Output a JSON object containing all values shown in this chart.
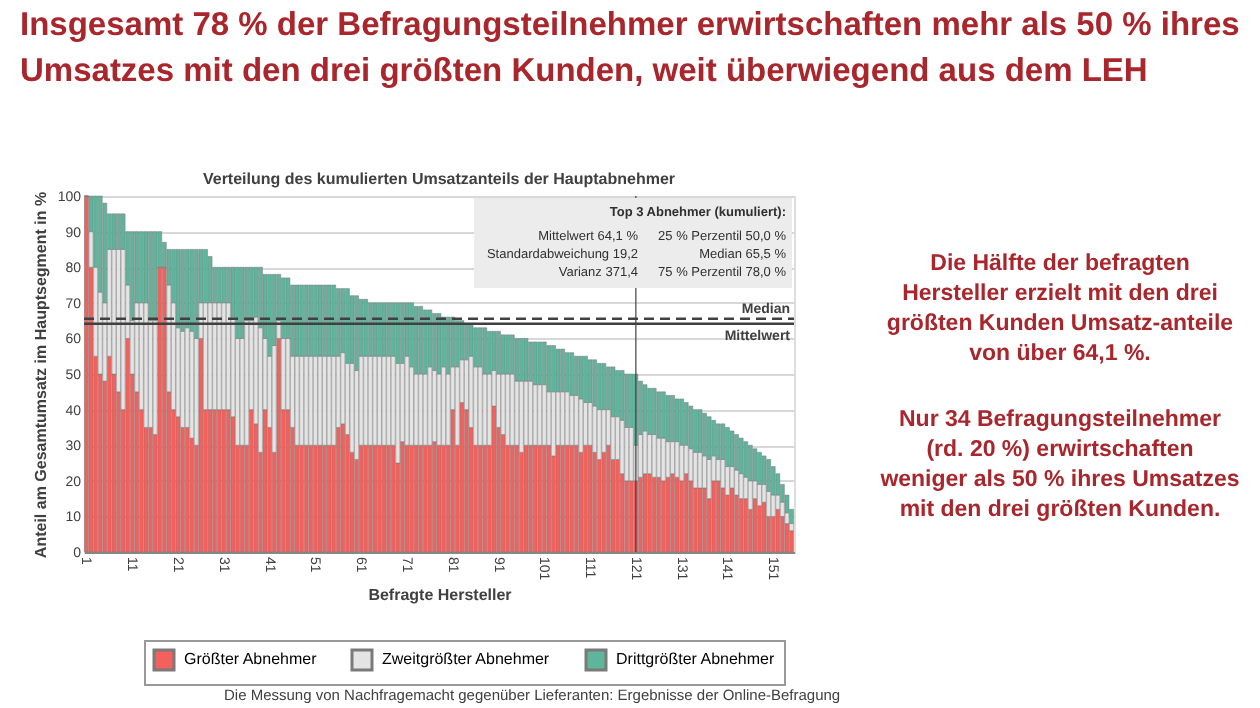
{
  "chart_data": {
    "type": "bar",
    "stacked": true,
    "title": "Insgesamt 78 % der Befragungsteilnehmer erwirtschaften mehr als 50 % ihres Umsatzes mit den drei größten Kunden, weit überwiegend aus dem LEH",
    "subtitle": "Verteilung des kumulierten Umsatzanteils der Hauptabnehmer",
    "xlabel": "Befragte Hersteller",
    "ylabel": "Anteil am Gesamtumsatz im Hauptsegment in %",
    "categories": [
      "1",
      null,
      null,
      null,
      null,
      null,
      null,
      null,
      null,
      null,
      "11",
      null,
      null,
      null,
      null,
      null,
      null,
      null,
      null,
      null,
      "21",
      null,
      null,
      null,
      null,
      null,
      null,
      null,
      null,
      null,
      "31",
      null,
      null,
      null,
      null,
      null,
      null,
      null,
      null,
      null,
      "41",
      null,
      null,
      null,
      null,
      null,
      null,
      null,
      null,
      null,
      "51",
      null,
      null,
      null,
      null,
      null,
      null,
      null,
      null,
      null,
      "61",
      null,
      null,
      null,
      null,
      null,
      null,
      null,
      null,
      null,
      "71",
      null,
      null,
      null,
      null,
      null,
      null,
      null,
      null,
      null,
      "81",
      null,
      null,
      null,
      null,
      null,
      null,
      null,
      null,
      null,
      "91",
      null,
      null,
      null,
      null,
      null,
      null,
      null,
      null,
      null,
      "101",
      null,
      null,
      null,
      null,
      null,
      null,
      null,
      null,
      null,
      "111",
      null,
      null,
      null,
      null,
      null,
      null,
      null,
      null,
      null,
      "121",
      null,
      null,
      null,
      null,
      null,
      null,
      null,
      null,
      null,
      "131",
      null,
      null,
      null,
      null,
      null,
      null,
      null,
      null,
      null,
      "141",
      null,
      null,
      null,
      null,
      null,
      null,
      null,
      null,
      null,
      "151",
      null,
      null,
      null,
      null
    ],
    "series": [
      {
        "name": "Größter Abnehmer",
        "color": "#f4605c",
        "values": [
          100,
          80,
          55,
          50,
          48,
          55,
          50,
          45,
          40,
          60,
          50,
          45,
          40,
          35,
          35,
          33,
          80,
          80,
          45,
          40,
          38,
          35,
          35,
          32,
          30,
          60,
          40,
          40,
          40,
          40,
          40,
          40,
          38,
          30,
          30,
          30,
          40,
          36,
          28,
          40,
          35,
          28,
          60,
          40,
          40,
          35,
          30,
          30,
          30,
          30,
          30,
          30,
          30,
          30,
          30,
          35,
          36,
          33,
          28,
          26,
          30,
          30,
          30,
          30,
          30,
          30,
          30,
          30,
          25,
          31,
          30,
          30,
          30,
          30,
          30,
          30,
          31,
          30,
          30,
          30,
          40,
          30,
          42,
          40,
          35,
          30,
          30,
          30,
          30,
          41,
          35,
          33,
          30,
          30,
          30,
          28,
          30,
          30,
          30,
          30,
          30,
          30,
          27,
          30,
          30,
          30,
          30,
          30,
          28,
          30,
          30,
          28,
          26,
          28,
          30,
          26,
          26,
          22,
          20,
          20,
          20,
          21,
          22,
          22,
          21,
          21,
          20,
          21,
          22,
          21,
          20,
          22,
          20,
          18,
          18,
          18,
          15,
          20,
          20,
          18,
          16,
          18,
          16,
          15,
          15,
          12,
          15,
          13,
          14,
          10,
          10,
          12,
          10,
          8,
          6
        ]
      },
      {
        "name": "Zweitgrößter Abnehmer",
        "color": "#e4e4e4",
        "values": [
          0,
          10,
          25,
          23,
          22,
          30,
          35,
          40,
          45,
          15,
          15,
          25,
          30,
          35,
          30,
          32,
          0,
          0,
          30,
          30,
          25,
          27,
          28,
          30,
          30,
          10,
          30,
          30,
          30,
          30,
          30,
          30,
          28,
          30,
          30,
          35,
          25,
          30,
          35,
          20,
          20,
          30,
          5,
          20,
          20,
          20,
          25,
          25,
          25,
          25,
          25,
          25,
          25,
          25,
          25,
          20,
          20,
          20,
          25,
          25,
          25,
          25,
          25,
          25,
          25,
          25,
          25,
          25,
          28,
          22,
          25,
          22,
          20,
          20,
          20,
          22,
          20,
          20,
          22,
          20,
          12,
          22,
          12,
          14,
          20,
          22,
          22,
          20,
          20,
          10,
          15,
          17,
          20,
          20,
          18,
          20,
          18,
          18,
          17,
          17,
          17,
          15,
          18,
          15,
          15,
          15,
          14,
          14,
          15,
          12,
          12,
          13,
          14,
          12,
          10,
          12,
          12,
          15,
          15,
          15,
          10,
          12,
          12,
          11,
          12,
          11,
          12,
          10,
          9,
          10,
          10,
          8,
          9,
          10,
          10,
          9,
          11,
          7,
          6,
          8,
          8,
          6,
          7,
          7,
          6,
          8,
          5,
          6,
          5,
          7,
          6,
          4,
          4,
          3,
          2
        ]
      },
      {
        "name": "Drittgrößter Abnehmer",
        "color": "#5fb49c",
        "values": [
          0,
          10,
          20,
          27,
          28,
          10,
          10,
          10,
          10,
          15,
          25,
          20,
          20,
          20,
          25,
          25,
          10,
          7,
          10,
          15,
          22,
          23,
          22,
          23,
          25,
          15,
          15,
          13,
          10,
          10,
          10,
          10,
          14,
          20,
          20,
          15,
          15,
          14,
          17,
          18,
          23,
          20,
          13,
          17,
          17,
          20,
          20,
          20,
          20,
          20,
          20,
          20,
          20,
          20,
          20,
          19,
          18,
          21,
          19,
          21,
          16,
          16,
          15,
          15,
          15,
          15,
          15,
          15,
          17,
          17,
          15,
          18,
          19,
          19,
          18,
          16,
          16,
          17,
          14,
          16,
          14,
          13,
          11,
          10,
          9,
          11,
          11,
          13,
          12,
          11,
          12,
          11,
          11,
          11,
          12,
          12,
          12,
          11,
          12,
          12,
          12,
          13,
          13,
          12,
          12,
          11,
          12,
          11,
          12,
          13,
          12,
          13,
          13,
          13,
          12,
          14,
          13,
          14,
          15,
          15,
          20,
          15,
          13,
          13,
          13,
          13,
          13,
          13,
          13,
          12,
          13,
          12,
          12,
          12,
          12,
          12,
          12,
          10,
          10,
          10,
          11,
          10,
          10,
          10,
          10,
          10,
          9,
          9,
          8,
          9,
          8,
          6,
          5,
          5,
          4
        ]
      }
    ],
    "ylim": [
      0,
      100
    ],
    "yticks": [
      0,
      10,
      20,
      30,
      40,
      50,
      60,
      70,
      80,
      90,
      100
    ],
    "grid": "y",
    "legend": "bottom",
    "ref_lines": [
      {
        "axis": "y",
        "value": 65.5,
        "label": "Median",
        "line_style": "dashed",
        "color": "#404040"
      },
      {
        "axis": "y",
        "value": 64.1,
        "label": "Mittelwert",
        "line_style": "solid",
        "color": "#404040"
      },
      {
        "axis": "x",
        "value": "121",
        "color": "#404040"
      }
    ],
    "annotations": [
      "Top 3 Abnehmer (kumuliert):",
      "Mittelwert 64,1 %",
      "Standardabweichung 19,2",
      "Varianz 371,4",
      "25 % Perzentil 50,0 %",
      "Median 65,5 %",
      "75 % Perzentil 78,0 %",
      "Die Hälfte der befragten Hersteller erzielt mit den drei größten Kunden Umsatz-anteile von über 64,1 %.",
      "Nur 34 Befragungsteilnehmer (rd. 20 %) erwirtschaften weniger als 50 % ihres Umsatzes mit den drei größten Kunden.",
      "Die Messung von Nachfragemacht gegenüber Lieferanten: Ergebnisse der Online-Befragung"
    ]
  }
}
